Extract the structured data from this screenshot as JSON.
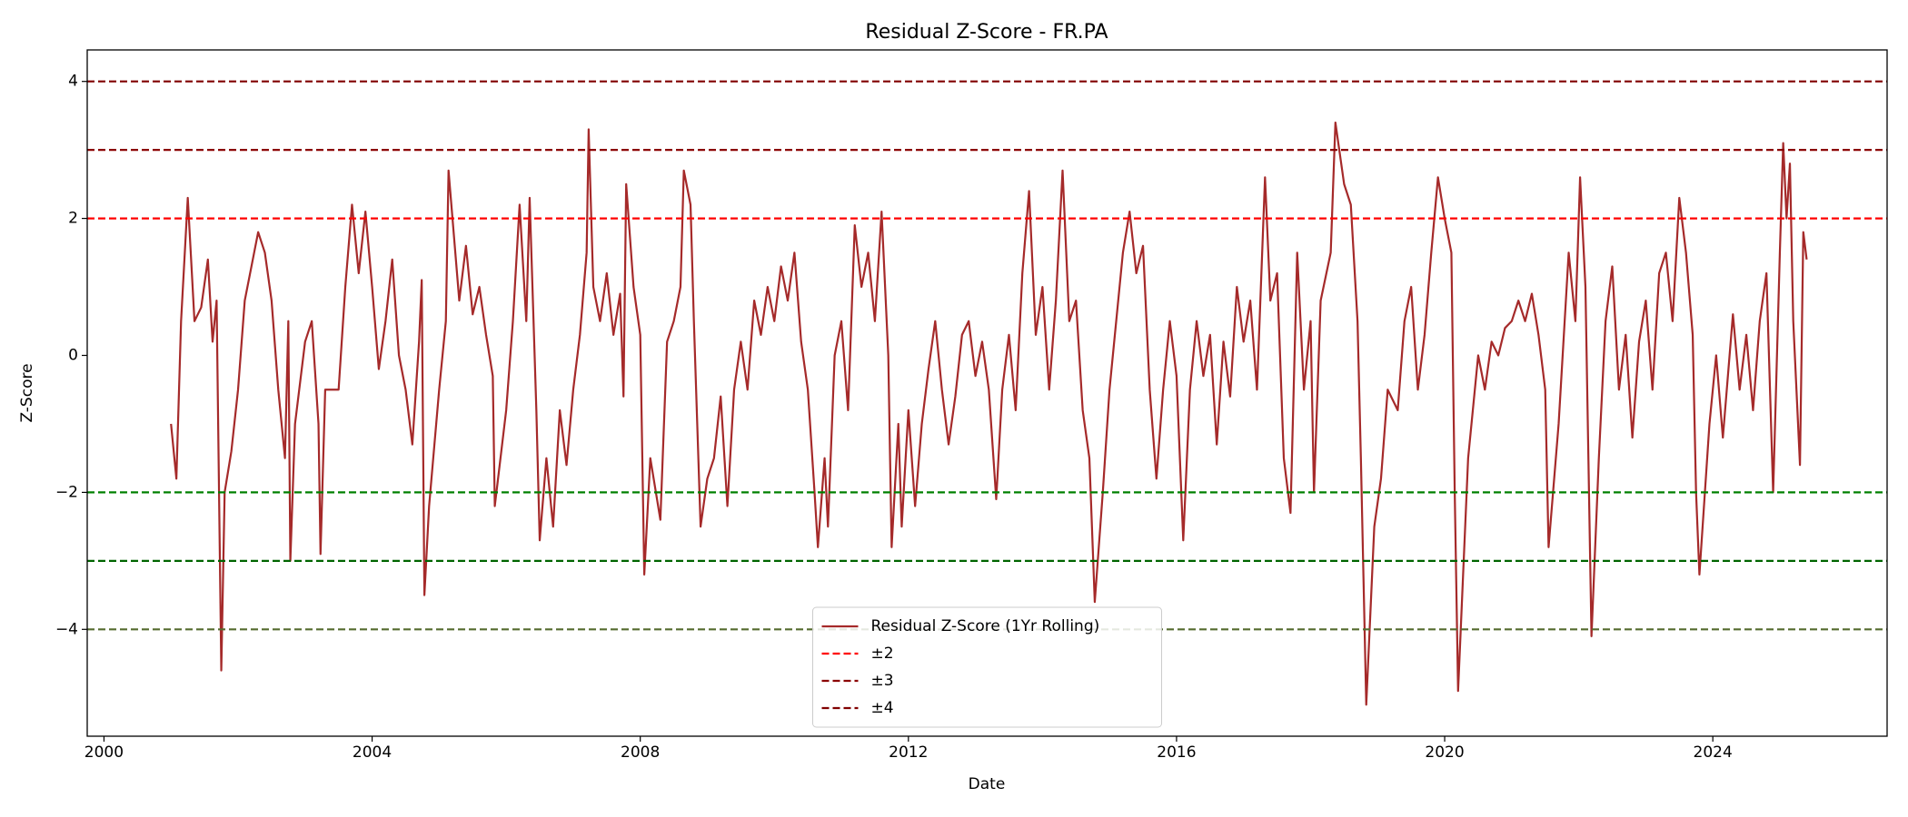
{
  "chart_data": {
    "type": "line",
    "title": "Residual Z-Score - FR.PA",
    "x_label": "Date",
    "y_label": "Z-Score",
    "xlim": [
      1999.75,
      2026.6
    ],
    "ylim": [
      -5.56,
      4.46
    ],
    "xticks": [
      2000,
      2004,
      2008,
      2012,
      2016,
      2020,
      2024
    ],
    "yticks": [
      {
        "value": -4,
        "label": "−4"
      },
      {
        "value": -2,
        "label": "−2"
      },
      0,
      2,
      4
    ],
    "legend": "lower center",
    "series": [
      {
        "name": "Residual Z-Score (1Yr Rolling)",
        "color": "#a52a2a",
        "x": [
          2001.0,
          2001.08,
          2001.15,
          2001.25,
          2001.35,
          2001.45,
          2001.55,
          2001.62,
          2001.68,
          2001.75,
          2001.8,
          2001.9,
          2002.0,
          2002.1,
          2002.2,
          2002.3,
          2002.4,
          2002.5,
          2002.6,
          2002.7,
          2002.75,
          2002.78,
          2002.85,
          2003.0,
          2003.1,
          2003.2,
          2003.23,
          2003.3,
          2003.5,
          2003.6,
          2003.7,
          2003.8,
          2003.9,
          2004.0,
          2004.1,
          2004.2,
          2004.3,
          2004.4,
          2004.5,
          2004.6,
          2004.7,
          2004.74,
          2004.78,
          2004.85,
          2005.0,
          2005.1,
          2005.14,
          2005.3,
          2005.4,
          2005.5,
          2005.6,
          2005.7,
          2005.8,
          2005.83,
          2006.0,
          2006.1,
          2006.2,
          2006.3,
          2006.35,
          2006.45,
          2006.5,
          2006.6,
          2006.7,
          2006.8,
          2006.9,
          2007.0,
          2007.1,
          2007.2,
          2007.23,
          2007.3,
          2007.4,
          2007.5,
          2007.6,
          2007.7,
          2007.75,
          2007.79,
          2007.9,
          2008.0,
          2008.06,
          2008.15,
          2008.3,
          2008.4,
          2008.5,
          2008.6,
          2008.65,
          2008.75,
          2008.8,
          2008.85,
          2008.9,
          2009.0,
          2009.1,
          2009.2,
          2009.3,
          2009.4,
          2009.5,
          2009.6,
          2009.7,
          2009.8,
          2009.9,
          2010.0,
          2010.1,
          2010.2,
          2010.3,
          2010.4,
          2010.5,
          2010.6,
          2010.65,
          2010.75,
          2010.8,
          2010.9,
          2011.0,
          2011.1,
          2011.2,
          2011.3,
          2011.4,
          2011.5,
          2011.6,
          2011.7,
          2011.75,
          2011.85,
          2011.9,
          2012.0,
          2012.1,
          2012.2,
          2012.3,
          2012.4,
          2012.5,
          2012.6,
          2012.7,
          2012.8,
          2012.9,
          2013.0,
          2013.1,
          2013.2,
          2013.31,
          2013.4,
          2013.5,
          2013.6,
          2013.7,
          2013.8,
          2013.9,
          2014.0,
          2014.1,
          2014.2,
          2014.3,
          2014.4,
          2014.5,
          2014.6,
          2014.7,
          2014.78,
          2014.9,
          2015.0,
          2015.1,
          2015.2,
          2015.3,
          2015.4,
          2015.5,
          2015.6,
          2015.7,
          2015.8,
          2015.9,
          2016.0,
          2016.1,
          2016.2,
          2016.3,
          2016.4,
          2016.5,
          2016.6,
          2016.7,
          2016.8,
          2016.9,
          2017.0,
          2017.1,
          2017.2,
          2017.32,
          2017.4,
          2017.5,
          2017.6,
          2017.7,
          2017.8,
          2017.9,
          2018.0,
          2018.05,
          2018.15,
          2018.3,
          2018.37,
          2018.5,
          2018.6,
          2018.7,
          2018.75,
          2018.83,
          2018.95,
          2019.05,
          2019.15,
          2019.3,
          2019.4,
          2019.5,
          2019.6,
          2019.7,
          2019.8,
          2019.9,
          2020.0,
          2020.1,
          2020.15,
          2020.2,
          2020.35,
          2020.5,
          2020.6,
          2020.7,
          2020.8,
          2020.9,
          2021.0,
          2021.1,
          2021.2,
          2021.3,
          2021.4,
          2021.5,
          2021.55,
          2021.7,
          2021.85,
          2021.95,
          2022.02,
          2022.1,
          2022.19,
          2022.3,
          2022.4,
          2022.5,
          2022.6,
          2022.7,
          2022.8,
          2022.9,
          2023.0,
          2023.1,
          2023.2,
          2023.3,
          2023.4,
          2023.5,
          2023.6,
          2023.7,
          2023.75,
          2023.8,
          2023.95,
          2024.05,
          2024.15,
          2024.3,
          2024.4,
          2024.5,
          2024.6,
          2024.7,
          2024.8,
          2024.9,
          2025.0,
          2025.05,
          2025.1,
          2025.15,
          2025.2,
          2025.3,
          2025.35,
          2025.4
        ],
        "values": [
          -1.0,
          -1.8,
          0.5,
          2.3,
          0.5,
          0.7,
          1.4,
          0.2,
          0.8,
          -4.6,
          -2.0,
          -1.4,
          -0.5,
          0.8,
          1.3,
          1.8,
          1.5,
          0.8,
          -0.5,
          -1.5,
          0.5,
          -3.0,
          -1.0,
          0.2,
          0.5,
          -1.0,
          -2.9,
          -0.5,
          -0.5,
          1.0,
          2.2,
          1.2,
          2.1,
          1.0,
          -0.2,
          0.5,
          1.4,
          0.0,
          -0.5,
          -1.3,
          0.2,
          1.1,
          -3.5,
          -2.2,
          -0.5,
          0.5,
          2.7,
          0.8,
          1.6,
          0.6,
          1.0,
          0.3,
          -0.3,
          -2.2,
          -0.8,
          0.5,
          2.2,
          0.5,
          2.3,
          -0.8,
          -2.7,
          -1.5,
          -2.5,
          -0.8,
          -1.6,
          -0.5,
          0.3,
          1.5,
          3.3,
          1.0,
          0.5,
          1.2,
          0.3,
          0.9,
          -0.6,
          2.5,
          1.0,
          0.3,
          -3.2,
          -1.5,
          -2.4,
          0.2,
          0.5,
          1.0,
          2.7,
          2.2,
          0.5,
          -1.0,
          -2.5,
          -1.8,
          -1.5,
          -0.6,
          -2.2,
          -0.5,
          0.2,
          -0.5,
          0.8,
          0.3,
          1.0,
          0.5,
          1.3,
          0.8,
          1.5,
          0.2,
          -0.5,
          -2.0,
          -2.8,
          -1.5,
          -2.5,
          0.0,
          0.5,
          -0.8,
          1.9,
          1.0,
          1.5,
          0.5,
          2.1,
          0.0,
          -2.8,
          -1.0,
          -2.5,
          -0.8,
          -2.2,
          -1.0,
          -0.2,
          0.5,
          -0.5,
          -1.3,
          -0.6,
          0.3,
          0.5,
          -0.3,
          0.2,
          -0.5,
          -2.1,
          -0.5,
          0.3,
          -0.8,
          1.2,
          2.4,
          0.3,
          1.0,
          -0.5,
          0.8,
          2.7,
          0.5,
          0.8,
          -0.8,
          -1.5,
          -3.6,
          -2.0,
          -0.5,
          0.5,
          1.5,
          2.1,
          1.2,
          1.6,
          -0.5,
          -1.8,
          -0.5,
          0.5,
          -0.3,
          -2.7,
          -0.5,
          0.5,
          -0.3,
          0.3,
          -1.3,
          0.2,
          -0.6,
          1.0,
          0.2,
          0.8,
          -0.5,
          2.6,
          0.8,
          1.2,
          -1.5,
          -2.3,
          1.5,
          -0.5,
          0.5,
          -2.0,
          0.8,
          1.5,
          3.4,
          2.5,
          2.2,
          0.5,
          -1.5,
          -5.1,
          -2.5,
          -1.8,
          -0.5,
          -0.8,
          0.5,
          1.0,
          -0.5,
          0.3,
          1.5,
          2.6,
          2.0,
          1.5,
          -2.0,
          -4.9,
          -1.5,
          0.0,
          -0.5,
          0.2,
          0.0,
          0.4,
          0.5,
          0.8,
          0.5,
          0.9,
          0.3,
          -0.5,
          -2.8,
          -1.0,
          1.5,
          0.5,
          2.6,
          1.0,
          -4.1,
          -1.5,
          0.5,
          1.3,
          -0.5,
          0.3,
          -1.2,
          0.2,
          0.8,
          -0.5,
          1.2,
          1.5,
          0.5,
          2.3,
          1.5,
          0.3,
          -2.0,
          -3.2,
          -1.0,
          0.0,
          -1.2,
          0.6,
          -0.5,
          0.3,
          -0.8,
          0.5,
          1.2,
          -2.0,
          1.5,
          3.1,
          2.0,
          2.8,
          0.5,
          -1.6,
          1.8,
          1.4
        ]
      }
    ],
    "hlines": [
      {
        "name": "±2",
        "values": [
          2,
          -2
        ],
        "colors": [
          "#ff0000",
          "#008000"
        ]
      },
      {
        "name": "±3",
        "values": [
          3,
          -3
        ],
        "colors": [
          "#8b0000",
          "#006400"
        ]
      },
      {
        "name": "±4",
        "values": [
          4,
          -4
        ],
        "colors": [
          "#800000",
          "#556b2f"
        ]
      }
    ]
  }
}
